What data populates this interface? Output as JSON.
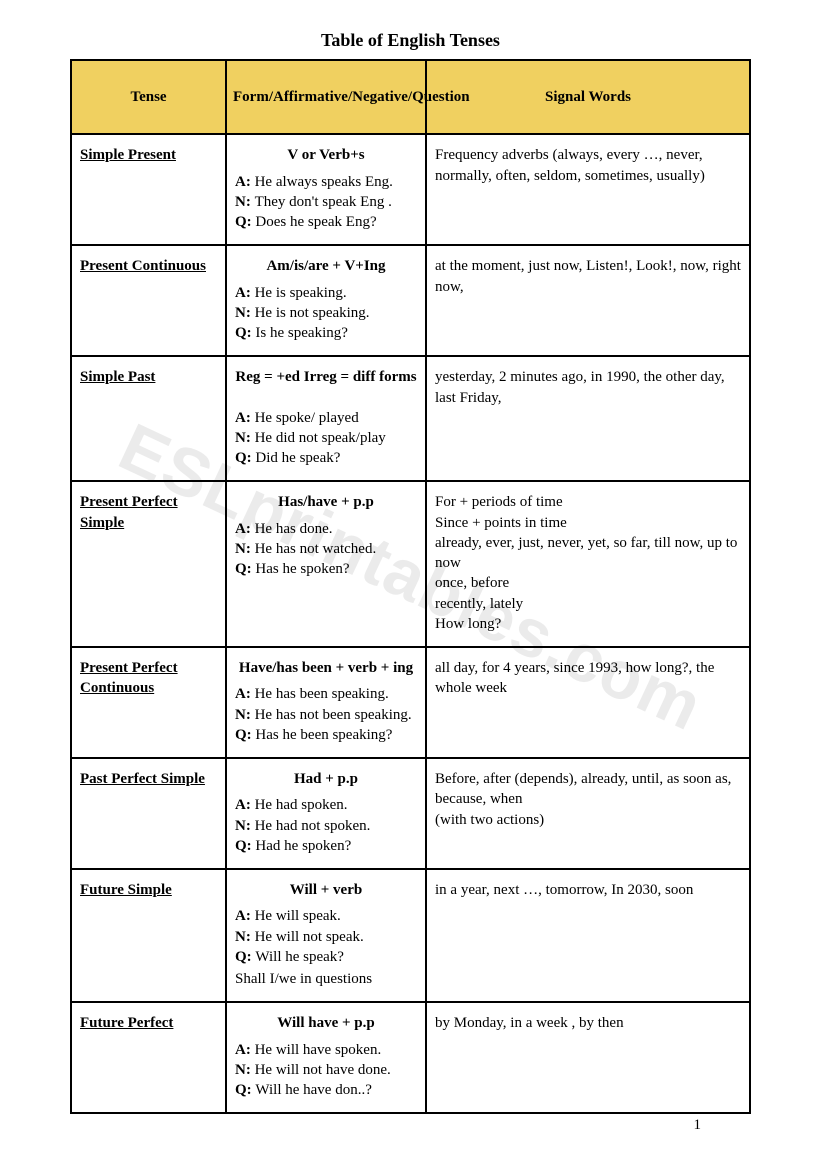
{
  "title": "Table of English Tenses",
  "watermark": "ESLprintables.com",
  "pageNumber": "1",
  "headers": {
    "tense": "Tense",
    "form": "Form/Affirmative/Negative/Question",
    "signal": "Signal Words"
  },
  "rows": [
    {
      "tense": "Simple Present",
      "form_head": "V or Verb+s",
      "a": "He always speaks Eng.",
      "n": "They don't speak Eng .",
      "q": "Does he speak Eng?",
      "extra": "",
      "signal": "Frequency adverbs (always, every …, never, normally, often, seldom, sometimes, usually)"
    },
    {
      "tense": "Present Continuous",
      "form_head": "Am/is/are + V+Ing",
      "a": "He is speaking.",
      "n": "He is not speaking.",
      "q": "Is he speaking?",
      "extra": "",
      "signal": "at the moment, just now, Listen!, Look!, now, right now,"
    },
    {
      "tense": "Simple Past",
      "form_head": "Reg = +ed     Irreg = diff forms",
      "a": "He spoke/ played",
      "n": "He did not speak/play",
      "q": "Did he speak?",
      "extra": "",
      "signal": "yesterday, 2 minutes ago, in 1990, the other day, last Friday,"
    },
    {
      "tense": "Present Perfect Simple",
      "form_head": "Has/have + p.p",
      "a": "He has done.",
      "n": "He has not watched.",
      "q": "Has he spoken?",
      "extra": "",
      "signal": "For + periods of time\nSince + points in time\nalready, ever, just, never, yet, so far, till now, up to now\nonce, before\nrecently, lately\nHow long?"
    },
    {
      "tense": "Present Perfect Continuous",
      "form_head": "Have/has been +  verb + ing",
      "a": "He has been speaking.",
      "n": "He has not been speaking.",
      "q": "Has he been speaking?",
      "extra": "",
      "signal": "all day, for 4 years, since 1993, how long?, the whole week"
    },
    {
      "tense": "Past Perfect Simple",
      "form_head": "Had + p.p",
      "a": "He had spoken.",
      "n": "He had not spoken.",
      "q": "Had he spoken?",
      "extra": "",
      "signal": "Before, after  (depends), already, until, as soon as, because, when\n(with two actions)"
    },
    {
      "tense": "Future Simple",
      "form_head": "Will + verb",
      "a": "He will speak.",
      "n": "He will not speak.",
      "q": "Will he speak?",
      "extra": "Shall  I/we in questions",
      "signal": "in a year, next …, tomorrow, In 2030, soon"
    },
    {
      "tense": "Future Perfect",
      "form_head": "Will have + p.p",
      "a": "He will have spoken.",
      "n": "He will not have done.",
      "q": "Will he have don..?",
      "extra": "",
      "signal": "by Monday, in a week , by then"
    }
  ],
  "labels": {
    "a": "A:",
    "n": "N:",
    "q": "Q:"
  },
  "colors": {
    "header_bg": "#f0d060",
    "border": "#000000",
    "background": "#ffffff",
    "watermark": "rgba(0,0,0,0.08)"
  }
}
